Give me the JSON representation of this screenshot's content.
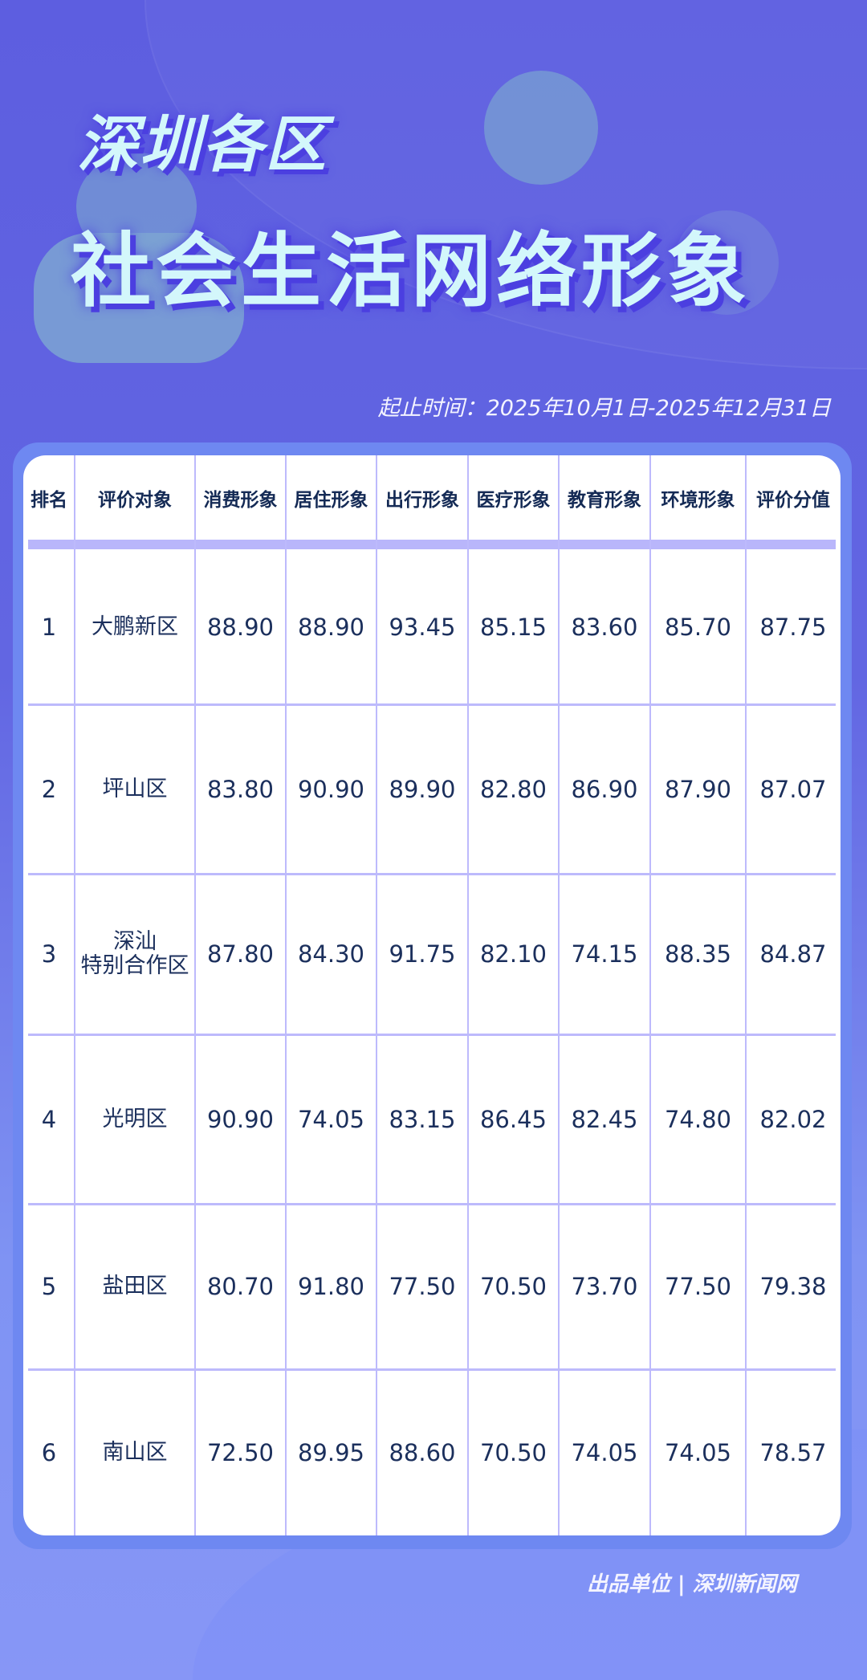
{
  "header": {
    "title_line1": "深圳各区",
    "title_line2": "社会生活网络形象",
    "date_range": "起止时间：2025年10月1日-2025年12月31日"
  },
  "table": {
    "columns": [
      "排名",
      "评价对象",
      "消费形象",
      "居住形象",
      "出行形象",
      "医疗形象",
      "教育形象",
      "环境形象",
      "评价分值"
    ],
    "rows": [
      {
        "cells": [
          "1",
          "大鹏新区",
          "88.90",
          "88.90",
          "93.45",
          "85.15",
          "83.60",
          "85.70",
          "87.75"
        ]
      },
      {
        "cells": [
          "2",
          "坪山区",
          "83.80",
          "90.90",
          "89.90",
          "82.80",
          "86.90",
          "87.90",
          "87.07"
        ]
      },
      {
        "cells": [
          "3",
          "深汕\n特别合作区",
          "87.80",
          "84.30",
          "91.75",
          "82.10",
          "74.15",
          "88.35",
          "84.87"
        ]
      },
      {
        "cells": [
          "4",
          "光明区",
          "90.90",
          "74.05",
          "83.15",
          "86.45",
          "82.45",
          "74.80",
          "82.02"
        ]
      },
      {
        "cells": [
          "5",
          "盐田区",
          "80.70",
          "91.80",
          "77.50",
          "70.50",
          "73.70",
          "77.50",
          "79.38"
        ]
      },
      {
        "cells": [
          "6",
          "南山区",
          "72.50",
          "89.95",
          "88.60",
          "70.50",
          "74.05",
          "74.05",
          "78.57"
        ]
      }
    ]
  },
  "footer": {
    "credit": "出品单位 | 深圳新闻网"
  },
  "colors": {
    "text": "#1b2f5c",
    "title": "#d3f7fb",
    "grid": "#bdbafc",
    "card": "#6e88f1"
  }
}
